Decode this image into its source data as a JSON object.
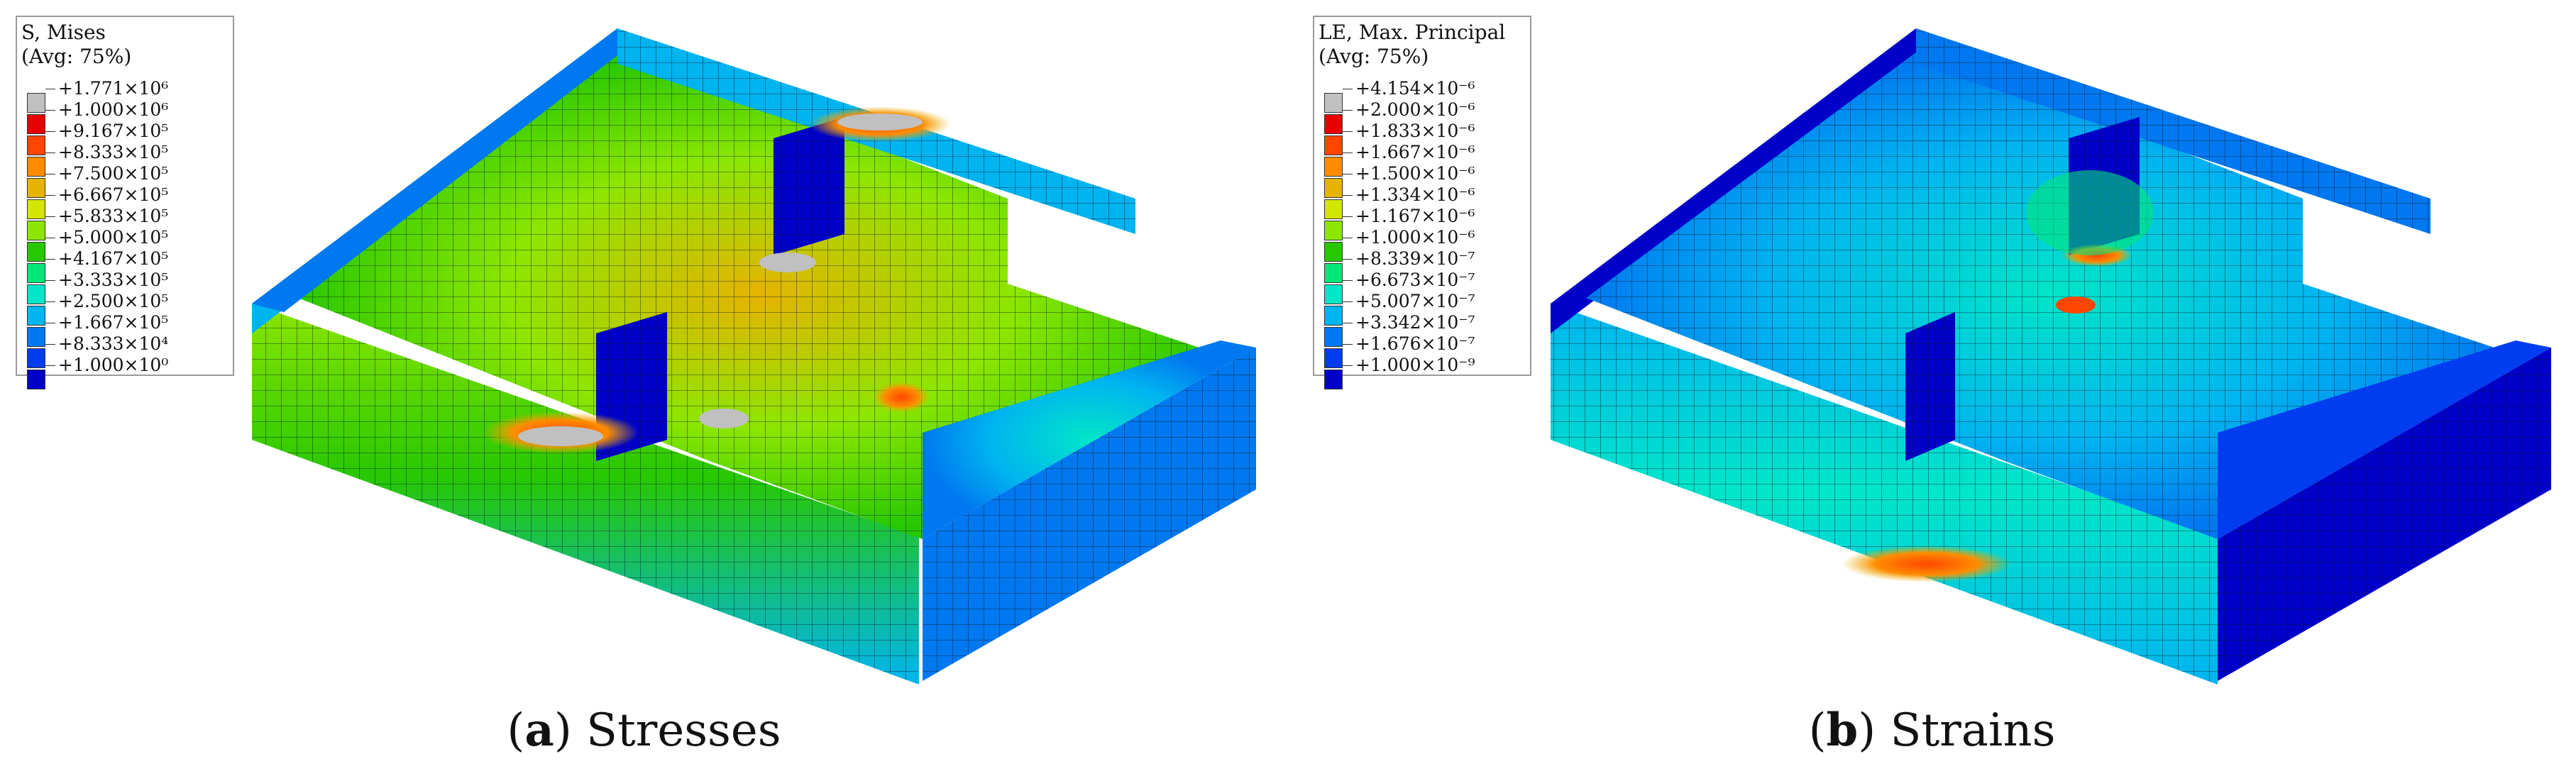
{
  "panels": [
    {
      "id": "a",
      "legend": {
        "title": "S, Mises",
        "avg": "(Avg: 75%)",
        "entries": [
          {
            "label": "+1.771×10⁶",
            "color": "#c0c0c0"
          },
          {
            "label": "+1.000×10⁶",
            "color": "#e60000"
          },
          {
            "label": "+9.167×10⁵",
            "color": "#ff4600"
          },
          {
            "label": "+8.333×10⁵",
            "color": "#ff8c00"
          },
          {
            "label": "+7.500×10⁵",
            "color": "#e6b400"
          },
          {
            "label": "+6.667×10⁵",
            "color": "#d2e600"
          },
          {
            "label": "+5.833×10⁵",
            "color": "#8ce600"
          },
          {
            "label": "+5.000×10⁵",
            "color": "#28c800"
          },
          {
            "label": "+4.167×10⁵",
            "color": "#00e678"
          },
          {
            "label": "+3.333×10⁵",
            "color": "#00e6c8"
          },
          {
            "label": "+2.500×10⁵",
            "color": "#00b4f0"
          },
          {
            "label": "+1.667×10⁵",
            "color": "#0078f0"
          },
          {
            "label": "+8.333×10⁴",
            "color": "#003cf0"
          },
          {
            "label": "+1.000×10⁰",
            "color": "#0000c8"
          }
        ]
      },
      "caption": {
        "letter": "a",
        "text": " Stresses"
      }
    },
    {
      "id": "b",
      "legend": {
        "title": "LE, Max. Principal",
        "avg": "(Avg: 75%)",
        "entries": [
          {
            "label": "+4.154×10⁻⁶",
            "color": "#c0c0c0"
          },
          {
            "label": "+2.000×10⁻⁶",
            "color": "#e60000"
          },
          {
            "label": "+1.833×10⁻⁶",
            "color": "#ff4600"
          },
          {
            "label": "+1.667×10⁻⁶",
            "color": "#ff8c00"
          },
          {
            "label": "+1.500×10⁻⁶",
            "color": "#e6b400"
          },
          {
            "label": "+1.334×10⁻⁶",
            "color": "#d2e600"
          },
          {
            "label": "+1.167×10⁻⁶",
            "color": "#8ce600"
          },
          {
            "label": "+1.000×10⁻⁶",
            "color": "#28c800"
          },
          {
            "label": "+8.339×10⁻⁷",
            "color": "#00e678"
          },
          {
            "label": "+6.673×10⁻⁷",
            "color": "#00e6c8"
          },
          {
            "label": "+5.007×10⁻⁷",
            "color": "#00b4f0"
          },
          {
            "label": "+3.342×10⁻⁷",
            "color": "#0078f0"
          },
          {
            "label": "+1.676×10⁻⁷",
            "color": "#003cf0"
          },
          {
            "label": "+1.000×10⁻⁹",
            "color": "#0000c8"
          }
        ]
      },
      "caption": {
        "letter": "b",
        "text": " Strains"
      }
    }
  ]
}
